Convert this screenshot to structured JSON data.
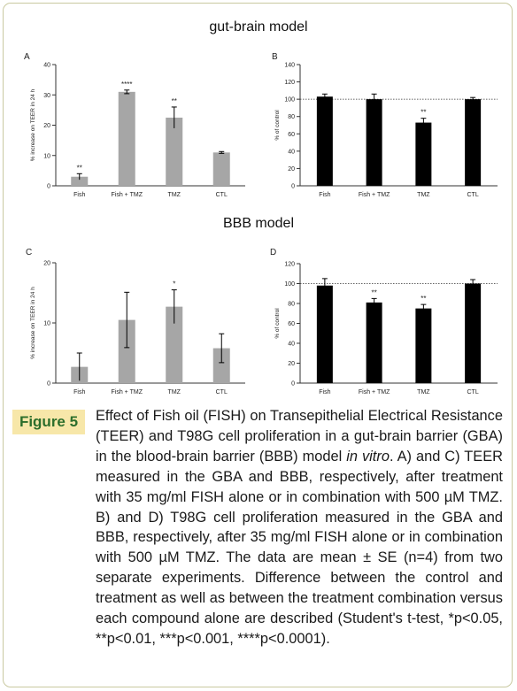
{
  "section_titles": {
    "top": "gut-brain model",
    "bottom": "BBB model"
  },
  "figure": {
    "label": "Figure 5",
    "caption_parts": [
      "Effect of Fish oil (FISH) on Transepithelial Electrical Resistance (TEER) and T98G cell proliferation in a gut-brain barrier (GBA) in the blood-brain barrier (BBB) model ",
      "in vitro",
      ". A) and C) TEER measured in the GBA and BBB, respectively, after treatment with 35 mg/ml FISH alone or in combination with 500 µM TMZ. B) and D) T98G cell proliferation measured in the GBA and BBB, respectively, after 35 mg/ml FISH alone or in combination with 500 µM TMZ. The data are mean ± SE (n=4) from two separate experiments. Difference between the control and treatment as well as between the treatment combination versus each compound alone are described (Student's t-test, *p<0.05, **p<0.01, ***p<0.001, ****p<0.0001)."
    ]
  },
  "chart_data": [
    {
      "panel": "A",
      "type": "bar",
      "categories": [
        "Fish",
        "Fish + TMZ",
        "TMZ",
        "CTL"
      ],
      "values": [
        3.0,
        31.0,
        22.5,
        11.0
      ],
      "errors": [
        1.0,
        0.6,
        3.5,
        0.3
      ],
      "annotations": [
        "**",
        "****",
        "**",
        ""
      ],
      "inner_marks": [
        false,
        true,
        false,
        true
      ],
      "ylabel": "% increase on TEER in 24 h",
      "ylim": [
        0,
        40
      ],
      "yticks": [
        0,
        10,
        20,
        30,
        40
      ],
      "bar_color": "#a6a6a6",
      "ref_line": null
    },
    {
      "panel": "B",
      "type": "bar",
      "categories": [
        "Fish",
        "Fish + TMZ",
        "TMZ",
        "CTL"
      ],
      "values": [
        103,
        100,
        73,
        100
      ],
      "errors": [
        3,
        6,
        5,
        2
      ],
      "annotations": [
        "",
        "",
        "**",
        ""
      ],
      "inner_marks": [
        false,
        false,
        false,
        false
      ],
      "ylabel": "% of control",
      "ylim": [
        0,
        140
      ],
      "yticks": [
        0,
        20,
        40,
        60,
        80,
        100,
        120,
        140
      ],
      "bar_color": "#000000",
      "ref_line": 100
    },
    {
      "panel": "C",
      "type": "bar",
      "categories": [
        "Fish",
        "Fish + TMZ",
        "TMZ",
        "CTL"
      ],
      "values": [
        2.7,
        10.5,
        12.7,
        5.8
      ],
      "errors": [
        2.3,
        4.6,
        2.8,
        2.4
      ],
      "annotations": [
        "",
        "",
        "*",
        ""
      ],
      "inner_marks": [
        false,
        true,
        false,
        true
      ],
      "ylabel": "% increase on TEER in 24 h",
      "ylim": [
        0,
        20
      ],
      "yticks": [
        0,
        10,
        20
      ],
      "bar_color": "#a6a6a6",
      "ref_line": null
    },
    {
      "panel": "D",
      "type": "bar",
      "categories": [
        "Fish",
        "Fish + TMZ",
        "TMZ",
        "CTL"
      ],
      "values": [
        98,
        81,
        75,
        100
      ],
      "errors": [
        7,
        4,
        4,
        4
      ],
      "annotations": [
        "",
        "**",
        "**",
        ""
      ],
      "inner_marks": [
        false,
        false,
        false,
        false
      ],
      "ylabel": "% of control",
      "ylim": [
        0,
        120
      ],
      "yticks": [
        0,
        20,
        40,
        60,
        80,
        100,
        120
      ],
      "bar_color": "#000000",
      "ref_line": 100
    }
  ]
}
